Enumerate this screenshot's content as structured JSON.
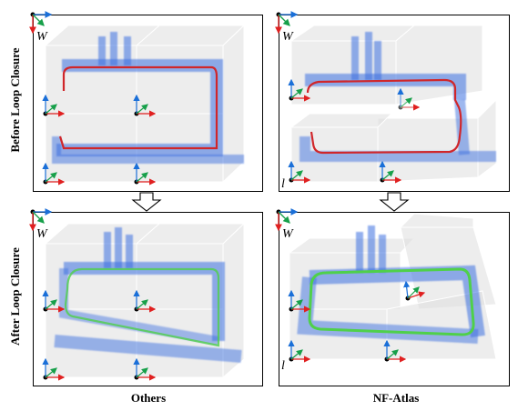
{
  "figure": {
    "row_labels": [
      "Before Loop Closure",
      "After Loop Closure"
    ],
    "column_labels": [
      "Others",
      "NF-Atlas"
    ],
    "world_frame_label": "W",
    "local_frame_label": "l",
    "colors": {
      "map_points": "#3b6fe0",
      "trajectory_before": "#d0262a",
      "trajectory_after": "#4fd04a",
      "axis_x": "#e02020",
      "axis_y": "#17a04a",
      "axis_z": "#1a6fd8",
      "cube_face": "#d9d9d9"
    }
  }
}
